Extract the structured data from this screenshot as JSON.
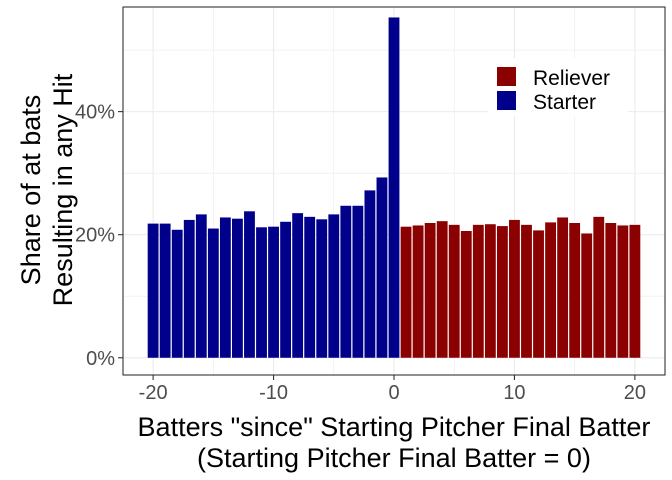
{
  "chart_data": {
    "type": "bar",
    "xlabel_lines": [
      "Batters \"since\" Starting Pitcher Final Batter",
      "(Starting Pitcher Final Batter = 0)"
    ],
    "ylabel_lines": [
      "Share of at bats",
      "Resulting in any Hit"
    ],
    "xlim": [
      -22.5,
      22.5
    ],
    "ylim": [
      -0.028,
      0.57
    ],
    "x_ticks": [
      -20,
      -10,
      0,
      10,
      20
    ],
    "x_tick_labels": [
      "-20",
      "-10",
      "0",
      "10",
      "20"
    ],
    "y_ticks": [
      0,
      0.2,
      0.4
    ],
    "y_tick_labels": [
      "0%",
      "20%",
      "40%"
    ],
    "grid": true,
    "legend_position": "top-right",
    "series": [
      {
        "name": "Reliever",
        "color": "#8B0000",
        "x": [
          1,
          2,
          3,
          4,
          5,
          6,
          7,
          8,
          9,
          10,
          11,
          12,
          13,
          14,
          15,
          16,
          17,
          18,
          19,
          20
        ],
        "values": [
          0.213,
          0.215,
          0.219,
          0.222,
          0.216,
          0.206,
          0.216,
          0.217,
          0.214,
          0.224,
          0.216,
          0.207,
          0.22,
          0.228,
          0.219,
          0.202,
          0.229,
          0.219,
          0.215,
          0.216
        ]
      },
      {
        "name": "Starter",
        "color": "#00008B",
        "x": [
          -20,
          -19,
          -18,
          -17,
          -16,
          -15,
          -14,
          -13,
          -12,
          -11,
          -10,
          -9,
          -8,
          -7,
          -6,
          -5,
          -4,
          -3,
          -2,
          -1,
          0
        ],
        "values": [
          0.218,
          0.218,
          0.208,
          0.224,
          0.233,
          0.21,
          0.228,
          0.226,
          0.238,
          0.212,
          0.213,
          0.221,
          0.235,
          0.229,
          0.225,
          0.233,
          0.247,
          0.247,
          0.272,
          0.293,
          0.553
        ]
      }
    ]
  }
}
